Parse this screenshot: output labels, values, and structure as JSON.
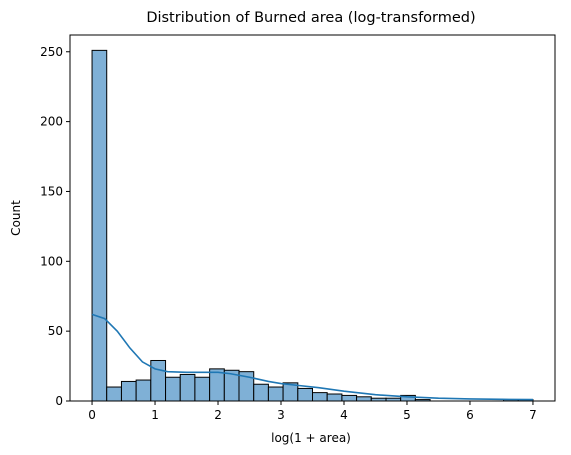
{
  "chart_data": {
    "type": "bar",
    "title": "Distribution of Burned area (log-transformed)",
    "xlabel": "log(1 + area)",
    "ylabel": "Count",
    "xlim": [
      -0.35,
      7.35
    ],
    "ylim": [
      0,
      262
    ],
    "xticks": [
      0,
      1,
      2,
      3,
      4,
      5,
      6,
      7
    ],
    "yticks": [
      0,
      50,
      100,
      150,
      200,
      250
    ],
    "bin_edges": [
      0,
      0.233,
      0.467,
      0.7,
      0.933,
      1.167,
      1.4,
      1.633,
      1.867,
      2.1,
      2.333,
      2.567,
      2.8,
      3.033,
      3.267,
      3.5,
      3.733,
      3.967,
      4.2,
      4.433,
      4.667,
      4.9,
      5.133,
      5.367,
      5.6,
      5.833,
      6.067,
      6.3,
      6.533,
      6.767,
      7.0
    ],
    "values": [
      251,
      10,
      14,
      15,
      29,
      17,
      19,
      17,
      23,
      22,
      21,
      12,
      10,
      13,
      9,
      6,
      5,
      4,
      3,
      2,
      2,
      4,
      1,
      0,
      0,
      0,
      0,
      0,
      1,
      1
    ],
    "kde": {
      "x": [
        0,
        0.2,
        0.4,
        0.6,
        0.8,
        1.0,
        1.2,
        1.5,
        1.8,
        2.0,
        2.2,
        2.5,
        2.8,
        3.0,
        3.3,
        3.6,
        4.0,
        4.5,
        5.0,
        5.5,
        6.0,
        6.5,
        7.0
      ],
      "y": [
        62,
        59,
        50,
        38,
        28,
        23,
        21,
        20.5,
        20.5,
        20.5,
        19.5,
        17,
        14,
        12.5,
        11,
        9.5,
        7,
        4.5,
        3,
        2,
        1.5,
        1.2,
        1.0
      ]
    },
    "bar_color": "#7fb0d6",
    "line_color": "#1f77b4",
    "grid": false,
    "legend": "none"
  }
}
